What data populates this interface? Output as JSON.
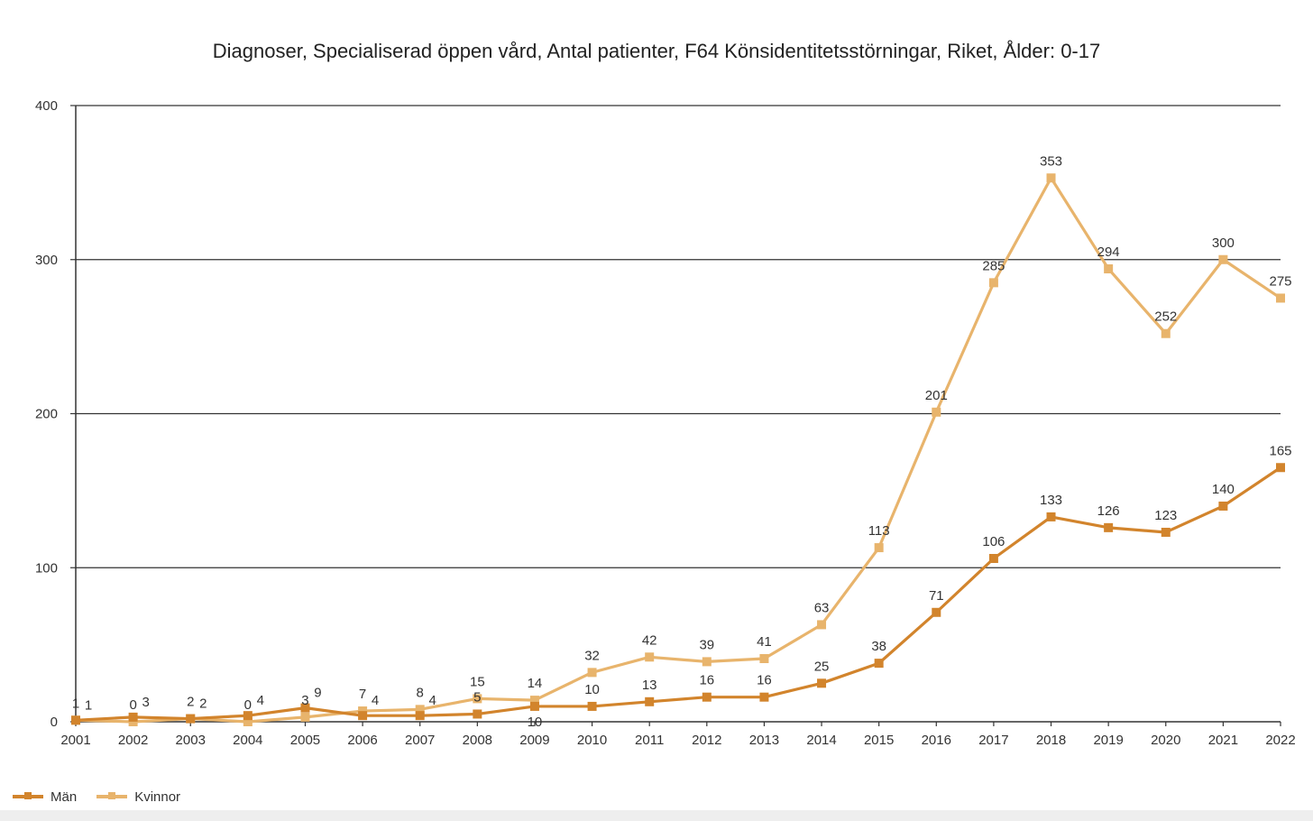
{
  "chart_data": {
    "type": "line",
    "title": "Diagnoser, Specialiserad öppen vård, Antal patienter, F64 Könsidentitetsstörningar, Riket, Ålder: 0-17",
    "xlabel": "",
    "ylabel": "",
    "ylim": [
      0,
      400
    ],
    "yticks": [
      0,
      100,
      200,
      300,
      400
    ],
    "grid": true,
    "legend_position": "bottom-left",
    "x": [
      "2001",
      "2002",
      "2003",
      "2004",
      "2005",
      "2006",
      "2007",
      "2008",
      "2009",
      "2010",
      "2011",
      "2012",
      "2013",
      "2014",
      "2015",
      "2016",
      "2017",
      "2018",
      "2019",
      "2020",
      "2021",
      "2022"
    ],
    "series": [
      {
        "name": "Män",
        "color": "#d2842c",
        "values": [
          1,
          3,
          2,
          4,
          9,
          4,
          4,
          5,
          10,
          10,
          13,
          16,
          16,
          25,
          38,
          71,
          106,
          133,
          126,
          123,
          140,
          165
        ]
      },
      {
        "name": "Kvinnor",
        "color": "#e8b46c",
        "values": [
          1,
          0,
          2,
          0,
          3,
          7,
          8,
          15,
          14,
          32,
          42,
          39,
          41,
          63,
          113,
          201,
          285,
          353,
          294,
          252,
          300,
          275
        ]
      }
    ]
  }
}
